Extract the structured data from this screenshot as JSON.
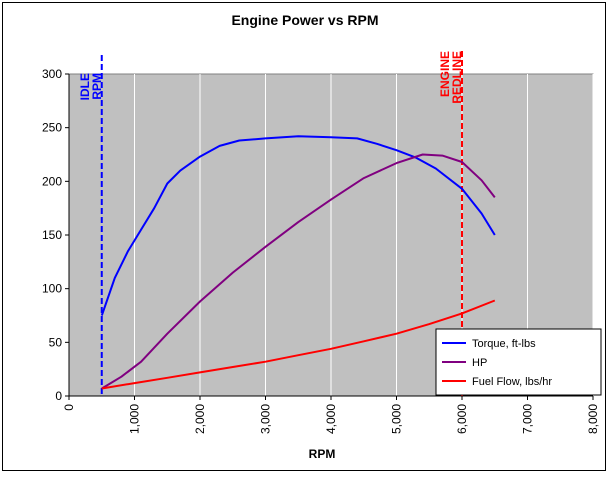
{
  "chart_data": {
    "type": "line",
    "title": "Engine Power vs RPM",
    "xlabel": "RPM",
    "ylabel": "",
    "xlim": [
      0,
      8000
    ],
    "ylim": [
      0,
      300
    ],
    "x_ticks": [
      0,
      1000,
      2000,
      3000,
      4000,
      5000,
      6000,
      7000,
      8000
    ],
    "x_tick_labels": [
      "0",
      "1,000",
      "2,000",
      "3,000",
      "4,000",
      "5,000",
      "6,000",
      "7,000",
      "8,000"
    ],
    "y_ticks": [
      0,
      50,
      100,
      150,
      200,
      250,
      300
    ],
    "y_tick_labels": [
      "0",
      "50",
      "100",
      "150",
      "200",
      "250",
      "300"
    ],
    "grid": "vertical gridlines",
    "plot_background": "#c0c0c0",
    "legend_position": "bottom-right",
    "series": [
      {
        "name": "Torque, ft-lbs",
        "color": "#0000ff",
        "points": [
          [
            500,
            75
          ],
          [
            700,
            110
          ],
          [
            900,
            135
          ],
          [
            1100,
            155
          ],
          [
            1300,
            175
          ],
          [
            1500,
            198
          ],
          [
            1700,
            210
          ],
          [
            2000,
            223
          ],
          [
            2300,
            233
          ],
          [
            2600,
            238
          ],
          [
            3000,
            240
          ],
          [
            3500,
            242
          ],
          [
            4000,
            241
          ],
          [
            4400,
            240
          ],
          [
            4700,
            235
          ],
          [
            5000,
            229
          ],
          [
            5300,
            222
          ],
          [
            5600,
            212
          ],
          [
            6000,
            193
          ],
          [
            6300,
            170
          ],
          [
            6500,
            150
          ]
        ]
      },
      {
        "name": "HP",
        "color": "#800080",
        "points": [
          [
            500,
            7
          ],
          [
            800,
            18
          ],
          [
            1100,
            32
          ],
          [
            1500,
            58
          ],
          [
            2000,
            88
          ],
          [
            2500,
            115
          ],
          [
            3000,
            139
          ],
          [
            3500,
            162
          ],
          [
            4000,
            183
          ],
          [
            4500,
            203
          ],
          [
            5000,
            217
          ],
          [
            5400,
            225
          ],
          [
            5700,
            224
          ],
          [
            6000,
            218
          ],
          [
            6300,
            201
          ],
          [
            6500,
            185
          ]
        ]
      },
      {
        "name": "Fuel Flow, lbs/hr",
        "color": "#ff0000",
        "points": [
          [
            500,
            7
          ],
          [
            1000,
            12
          ],
          [
            1500,
            17
          ],
          [
            2000,
            22
          ],
          [
            2500,
            27
          ],
          [
            3000,
            32
          ],
          [
            3500,
            38
          ],
          [
            4000,
            44
          ],
          [
            4500,
            51
          ],
          [
            5000,
            58
          ],
          [
            5500,
            67
          ],
          [
            6000,
            77
          ],
          [
            6500,
            89
          ]
        ]
      }
    ],
    "markers": [
      {
        "x": 500,
        "label": "IDLE RPM",
        "color": "#0000ff",
        "lines": [
          "IDLE",
          "RPM"
        ]
      },
      {
        "x": 6000,
        "label": "ENGINE REDLINE",
        "color": "#ff0000",
        "lines": [
          "ENGINE",
          "REDLINE"
        ]
      }
    ]
  }
}
